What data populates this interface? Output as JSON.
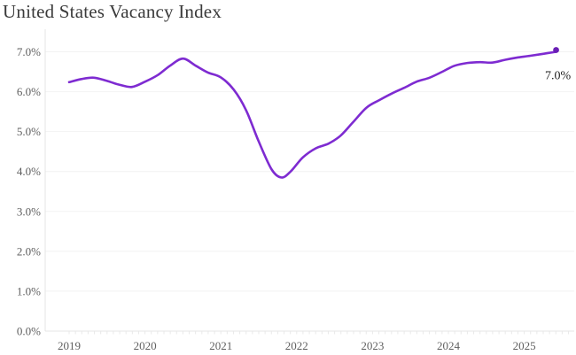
{
  "title": "United States Vacancy Index",
  "annotation": {
    "last_value_label": "7.0%"
  },
  "colors": {
    "line": "#7e2bd1",
    "marker": "#6a1fb5",
    "title": "#3a3a3a",
    "axis_label": "#5f5f5f",
    "gridline": "#f2f2f2",
    "axis_line": "#e4e4e4",
    "minor_tick": "#e9e9e9",
    "annotation": "#1f1f1f",
    "background": "#ffffff"
  },
  "chart_data": {
    "type": "line",
    "title": "United States Vacancy Index",
    "series": [
      {
        "name": "Vacancy Index",
        "x": [
          2019.0,
          2019.17,
          2019.33,
          2019.5,
          2019.67,
          2019.83,
          2020.0,
          2020.17,
          2020.33,
          2020.5,
          2020.67,
          2020.83,
          2021.0,
          2021.17,
          2021.33,
          2021.5,
          2021.67,
          2021.8,
          2021.92,
          2022.08,
          2022.25,
          2022.42,
          2022.58,
          2022.75,
          2022.92,
          2023.08,
          2023.25,
          2023.42,
          2023.58,
          2023.75,
          2023.92,
          2024.08,
          2024.25,
          2024.42,
          2024.58,
          2024.75,
          2024.92,
          2025.08,
          2025.25,
          2025.42
        ],
        "values": [
          6.24,
          6.32,
          6.35,
          6.27,
          6.17,
          6.12,
          6.25,
          6.42,
          6.65,
          6.83,
          6.65,
          6.48,
          6.36,
          6.05,
          5.55,
          4.75,
          4.05,
          3.85,
          4.0,
          4.35,
          4.58,
          4.7,
          4.9,
          5.25,
          5.6,
          5.78,
          5.95,
          6.1,
          6.25,
          6.35,
          6.5,
          6.65,
          6.72,
          6.74,
          6.73,
          6.8,
          6.86,
          6.9,
          6.95,
          7.0
        ]
      }
    ],
    "last_point_label": "7.0%",
    "xlabel": "",
    "ylabel": "",
    "x_ticks": [
      2019,
      2020,
      2021,
      2022,
      2023,
      2024,
      2025
    ],
    "x_tick_labels": [
      "2019",
      "2020",
      "2021",
      "2022",
      "2023",
      "2024",
      "2025"
    ],
    "y_ticks": [
      0,
      1,
      2,
      3,
      4,
      5,
      6,
      7
    ],
    "y_tick_labels": [
      "0.0%",
      "1.0%",
      "2.0%",
      "3.0%",
      "4.0%",
      "5.0%",
      "6.0%",
      "7.0%"
    ],
    "ylim": [
      0,
      7.55
    ],
    "xlim": [
      2018.7,
      2025.66
    ],
    "grid": "horizontal-only",
    "minor_ticks": "monthly-on-x-axis",
    "legend": "none",
    "marker": "dot-on-last-point"
  }
}
